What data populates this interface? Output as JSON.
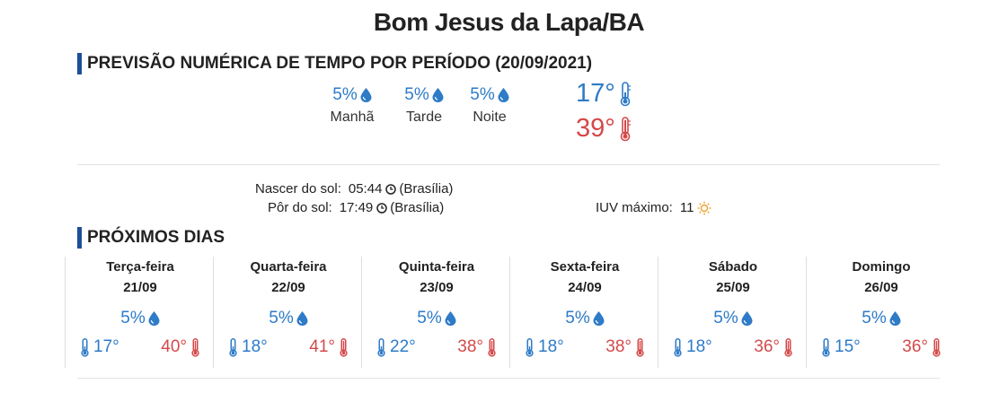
{
  "city": "Bom Jesus da Lapa/BA",
  "forecast_section": {
    "title": "PREVISÃO NUMÉRICA DE TEMPO POR PERÍODO (20/09/2021)",
    "periods": [
      {
        "pct": "5%",
        "label": "Manhã"
      },
      {
        "pct": "5%",
        "label": "Tarde"
      },
      {
        "pct": "5%",
        "label": "Noite"
      }
    ],
    "temp_min": "17°",
    "temp_max": "39°"
  },
  "sun": {
    "sunrise_label": "Nascer do sol:",
    "sunrise_time": "05:44",
    "sunrise_tz": "(Brasília)",
    "sunset_label": "Pôr do sol:",
    "sunset_time": "17:49",
    "sunset_tz": "(Brasília)",
    "uv_label": "IUV máximo:",
    "uv_value": "11"
  },
  "next_days": {
    "title": "PRÓXIMOS DIAS",
    "days": [
      {
        "name": "Terça-feira",
        "date": "21/09",
        "pct": "5%",
        "min": "17°",
        "max": "40°"
      },
      {
        "name": "Quarta-feira",
        "date": "22/09",
        "pct": "5%",
        "min": "18°",
        "max": "41°"
      },
      {
        "name": "Quinta-feira",
        "date": "23/09",
        "pct": "5%",
        "min": "22°",
        "max": "38°"
      },
      {
        "name": "Sexta-feira",
        "date": "24/09",
        "pct": "5%",
        "min": "18°",
        "max": "38°"
      },
      {
        "name": "Sábado",
        "date": "25/09",
        "pct": "5%",
        "min": "18°",
        "max": "36°"
      },
      {
        "name": "Domingo",
        "date": "26/09",
        "pct": "5%",
        "min": "15°",
        "max": "36°"
      }
    ]
  },
  "colors": {
    "accent_bar": "#1f4e98",
    "rain_blue": "#2e7bc7",
    "hot_red": "#d4494a",
    "uv_orange": "#f0a030"
  },
  "icons": {
    "rain": "raindrop-icon",
    "cold": "thermometer-cold-icon",
    "hot": "thermometer-hot-icon",
    "clock": "clock-icon",
    "uv": "sun-icon"
  }
}
